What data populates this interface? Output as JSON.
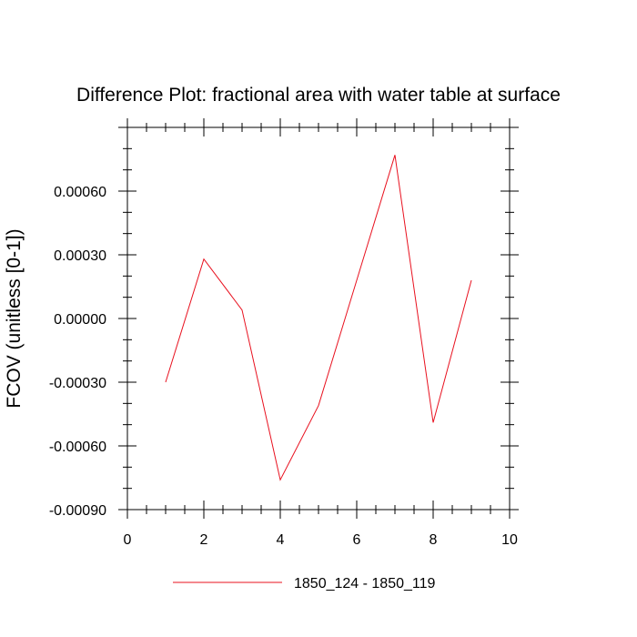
{
  "chart_data": {
    "type": "line",
    "title": "Difference Plot: fractional area with water table at surface",
    "xlabel": "",
    "ylabel": "FCOV  (unitless [0-1])",
    "xlim": [
      0,
      10
    ],
    "ylim": [
      -0.0009,
      0.0009
    ],
    "x_ticks": [
      "0",
      "2",
      "4",
      "6",
      "8",
      "10"
    ],
    "y_ticks": [
      "-0.00090",
      "-0.00060",
      "-0.00030",
      "0.00000",
      "0.00030",
      "0.00060"
    ],
    "grid": false,
    "legend": "bottom",
    "series": [
      {
        "name": "1850_124 - 1850_119",
        "color": "#e8101e",
        "x": [
          1,
          2,
          3,
          4,
          5,
          6,
          7,
          8,
          9
        ],
        "values": [
          -0.0003,
          0.00028,
          4e-05,
          -0.00076,
          -0.00041,
          0.00018,
          0.00077,
          -0.00049,
          0.00018
        ]
      }
    ]
  }
}
